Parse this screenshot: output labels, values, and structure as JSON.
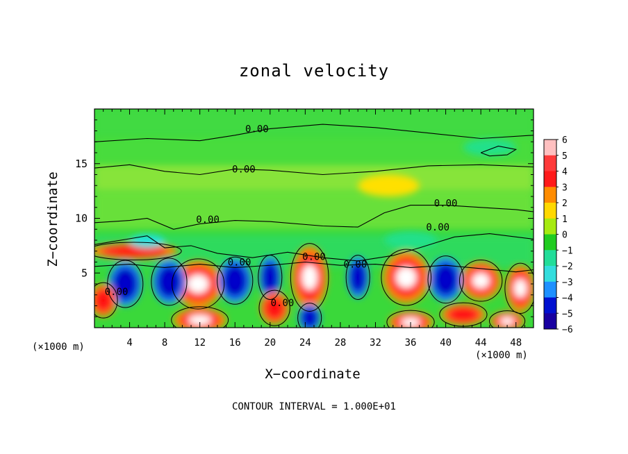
{
  "chart_data": {
    "type": "heatmap",
    "title": "zonal velocity",
    "xlabel": "X−coordinate",
    "ylabel": "Z−coordinate",
    "x_unit_left": "(×1000 m)",
    "x_unit_right": "(×1000 m)",
    "note": "CONTOUR INTERVAL = 1.000E+01",
    "xlim": [
      0,
      50
    ],
    "ylim": [
      0,
      20
    ],
    "x_ticks": [
      "4",
      "8",
      "12",
      "16",
      "20",
      "24",
      "28",
      "32",
      "36",
      "40",
      "44",
      "48"
    ],
    "x_tick_values": [
      4,
      8,
      12,
      16,
      20,
      24,
      28,
      32,
      36,
      40,
      44,
      48
    ],
    "y_ticks": [
      "5",
      "10",
      "15"
    ],
    "y_tick_values": [
      5,
      10,
      15
    ],
    "colorbar": {
      "ticks": [
        "6",
        "5",
        "4",
        "3",
        "2",
        "1",
        "0",
        "−1",
        "−2",
        "−3",
        "−4",
        "−5",
        "−6"
      ],
      "values": [
        6,
        5,
        4,
        3,
        2,
        1,
        0,
        -1,
        -2,
        -3,
        -4,
        -5,
        -6
      ],
      "colors": [
        "#ffb0b0",
        "#ff3030",
        "#ff1010",
        "#ff9a00",
        "#ffe000",
        "#d8f000",
        "#33dd33",
        "#22e08a",
        "#20e0e0",
        "#1a8cff",
        "#0000cc",
        "#2000a0",
        "#7a00c8"
      ]
    },
    "contour_labels": [
      {
        "text": "0.00",
        "x": 18.5,
        "y": 18.2
      },
      {
        "text": "0.00",
        "x": 17.0,
        "y": 14.5
      },
      {
        "text": "0.00",
        "x": 12.9,
        "y": 9.9
      },
      {
        "text": "0.00",
        "x": 16.5,
        "y": 6.0
      },
      {
        "text": "0.00",
        "x": 25.0,
        "y": 6.5
      },
      {
        "text": "0.00",
        "x": 29.7,
        "y": 5.8
      },
      {
        "text": "0.00",
        "x": 40.0,
        "y": 11.4
      },
      {
        "text": "0.00",
        "x": 39.1,
        "y": 9.2
      },
      {
        "text": "0.00",
        "x": 2.5,
        "y": 3.3
      },
      {
        "text": "0.00",
        "x": 21.4,
        "y": 2.3
      }
    ],
    "features": [
      {
        "x": 11.8,
        "z": 4.0,
        "value": 6,
        "rx": 2.2,
        "rz": 1.7
      },
      {
        "x": 20.0,
        "z": 4.6,
        "value": -4.5,
        "rx": 1.0,
        "rz": 1.5
      },
      {
        "x": 24.5,
        "z": 4.6,
        "value": 6,
        "rx": 1.6,
        "rz": 2.3
      },
      {
        "x": 30.0,
        "z": 4.6,
        "value": -4.5,
        "rx": 1.0,
        "rz": 1.5
      },
      {
        "x": 35.5,
        "z": 4.6,
        "value": 6,
        "rx": 2.1,
        "rz": 1.9
      },
      {
        "x": 44.0,
        "z": 4.3,
        "value": 6,
        "rx": 1.8,
        "rz": 1.4
      },
      {
        "x": 48.5,
        "z": 3.6,
        "value": 6,
        "rx": 1.3,
        "rz": 1.7
      },
      {
        "x": 8.5,
        "z": 4.2,
        "value": -4.5,
        "rx": 1.5,
        "rz": 1.6
      },
      {
        "x": 16.0,
        "z": 4.3,
        "value": -4.5,
        "rx": 1.5,
        "rz": 1.6
      },
      {
        "x": 3.5,
        "z": 4.0,
        "value": -4,
        "rx": 1.5,
        "rz": 1.6
      },
      {
        "x": 40.0,
        "z": 4.4,
        "value": -4,
        "rx": 1.5,
        "rz": 1.6
      },
      {
        "x": 12.0,
        "z": 0.7,
        "value": 6,
        "rx": 2.4,
        "rz": 0.9
      },
      {
        "x": 24.5,
        "z": 0.9,
        "value": -4.5,
        "rx": 1.0,
        "rz": 1.0
      },
      {
        "x": 36.0,
        "z": 0.5,
        "value": 6,
        "rx": 2.0,
        "rz": 0.8
      },
      {
        "x": 47.0,
        "z": 0.6,
        "value": 6,
        "rx": 1.5,
        "rz": 0.7
      },
      {
        "x": 1.0,
        "z": 2.5,
        "value": 4,
        "rx": 1.2,
        "rz": 1.2
      },
      {
        "x": 20.5,
        "z": 1.8,
        "value": 4,
        "rx": 1.3,
        "rz": 1.2
      },
      {
        "x": 42.0,
        "z": 1.2,
        "value": 4,
        "rx": 2.0,
        "rz": 0.8
      },
      {
        "x": 4.5,
        "z": 7.0,
        "value": 4,
        "rx": 4.0,
        "rz": 0.6
      },
      {
        "x": 6.0,
        "z": 7.9,
        "value": -2.5,
        "rx": 2.0,
        "rz": 0.6
      },
      {
        "x": 33.5,
        "z": 13.0,
        "value": 2,
        "rx": 3.5,
        "rz": 1.0
      },
      {
        "x": 45.0,
        "z": 16.5,
        "value": -1,
        "rx": 3.0,
        "rz": 0.8
      },
      {
        "x": 36.0,
        "z": 8.0,
        "value": -1.5,
        "rx": 3.0,
        "rz": 0.8
      }
    ]
  }
}
